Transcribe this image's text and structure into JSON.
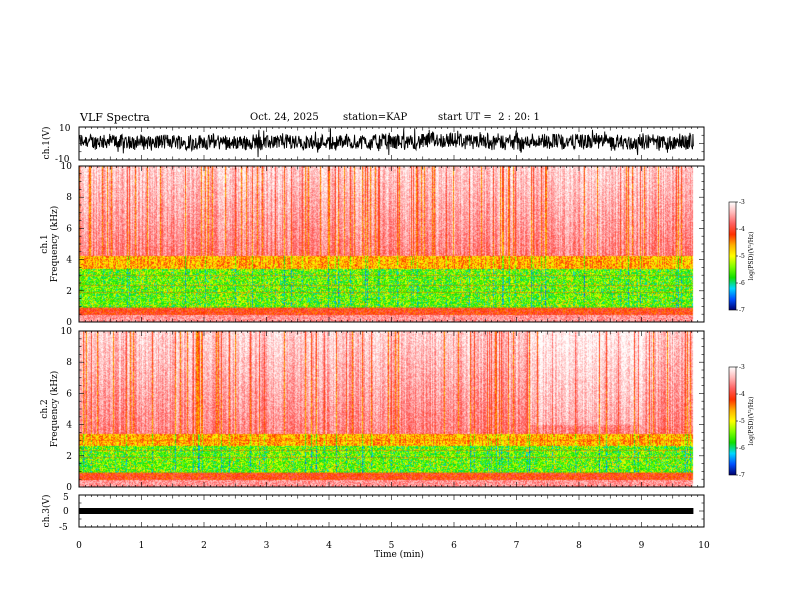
{
  "header": {
    "title": "VLF Spectra",
    "date": "Oct. 24, 2025",
    "station": "station=KAP",
    "start": "start UT =  2 : 20: 1"
  },
  "chart_data": [
    {
      "type": "line",
      "name": "ch1-waveform",
      "ylabel": "ch.1(V)",
      "ylim": [
        -10,
        10
      ],
      "yticks": [
        "10",
        "-10"
      ],
      "x_range_min": [
        0,
        9.83
      ]
    },
    {
      "type": "heatmap",
      "name": "ch1-spectrogram",
      "ylabel_line1": "ch.1",
      "ylabel_line2": "Frequency (kHz)",
      "ylim": [
        0,
        10
      ],
      "yticks": [
        "0",
        "2",
        "4",
        "6",
        "8",
        "10"
      ],
      "x_range_min": [
        0,
        9.83
      ],
      "colorbar": {
        "label": "log(PSD)(V²/Hz)",
        "ticks": [
          "-3",
          "-4",
          "-5",
          "-6",
          "-7"
        ],
        "range": [
          -7,
          -3
        ],
        "colors": [
          "#00006e",
          "#0050ff",
          "#00d8ff",
          "#10e000",
          "#80ff00",
          "#ffff00",
          "#ffb000",
          "#ff3000",
          "#ff6060",
          "#ffb8b8",
          "#ffffff"
        ]
      }
    },
    {
      "type": "heatmap",
      "name": "ch2-spectrogram",
      "ylabel_line1": "ch.2",
      "ylabel_line2": "Frequency (kHz)",
      "ylim": [
        0,
        10
      ],
      "yticks": [
        "0",
        "2",
        "4",
        "6",
        "8",
        "10"
      ],
      "x_range_min": [
        0,
        9.83
      ],
      "colorbar": {
        "label": "log(PSD)(V²/Hz)",
        "ticks": [
          "-3",
          "-4",
          "-5",
          "-6",
          "-7"
        ],
        "range": [
          -7,
          -3
        ],
        "colors": [
          "#00006e",
          "#0050ff",
          "#00d8ff",
          "#10e000",
          "#80ff00",
          "#ffff00",
          "#ffb000",
          "#ff3000",
          "#ff6060",
          "#ffb8b8",
          "#ffffff"
        ]
      }
    },
    {
      "type": "line",
      "name": "ch3-waveform",
      "ylabel": "ch.3(V)",
      "ylim": [
        -5,
        5
      ],
      "yticks": [
        "5",
        "0",
        "-5"
      ],
      "x_range_min": [
        0,
        9.83
      ]
    }
  ],
  "time_axis": {
    "label": "Time (min)",
    "range": [
      0,
      10
    ],
    "ticks": [
      "0",
      "1",
      "2",
      "3",
      "4",
      "5",
      "6",
      "7",
      "8",
      "9",
      "10"
    ]
  }
}
